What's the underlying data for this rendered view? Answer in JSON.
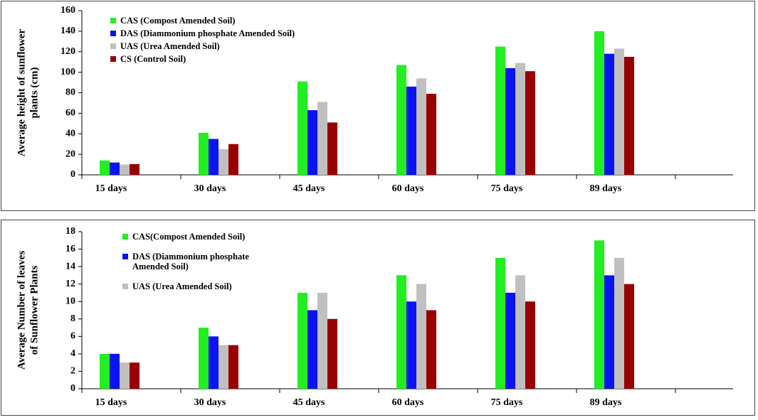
{
  "chart_data": [
    {
      "type": "bar",
      "ylabel": [
        "Average height of sunflower",
        "plants  (cm)"
      ],
      "categories": [
        "15 days",
        "30 days",
        "45 days",
        "60 days",
        "75 days",
        "89 days"
      ],
      "series": [
        {
          "name": "CAS (Compost Amended Soil)",
          "color": "#22ee22",
          "values": [
            14,
            41,
            91,
            107,
            125,
            140
          ]
        },
        {
          "name": "DAS (Diammonium phosphate  Amended Soil)",
          "color": "#0a14f0",
          "values": [
            12,
            35,
            63,
            86,
            104,
            118
          ]
        },
        {
          "name": "UAS (Urea Amended Soil)",
          "color": "#c0c0c0",
          "values": [
            10,
            25,
            71,
            94,
            109,
            123
          ]
        },
        {
          "name": "CS (Control Soil)",
          "color": "#990000",
          "values": [
            10.5,
            30,
            51,
            79,
            101,
            115
          ]
        }
      ],
      "ylim": [
        0,
        160
      ],
      "yticks": [
        0,
        20,
        40,
        60,
        80,
        100,
        120,
        140,
        160
      ],
      "grid": false
    },
    {
      "type": "bar",
      "ylabel": [
        "Average Number of leaves",
        "of Sunflower Plants"
      ],
      "categories": [
        "15 days",
        "30 days",
        "45 days",
        "60 days",
        "75 days",
        "89 days"
      ],
      "series": [
        {
          "name": "CAS(Compost Amended Soil)",
          "color": "#22ee22",
          "values": [
            4,
            7,
            11,
            13,
            15,
            17
          ]
        },
        {
          "name": "DAS (Diammonium phosphate Amended Soil)",
          "color": "#0a14f0",
          "values": [
            4,
            6,
            9,
            10,
            11,
            13
          ]
        },
        {
          "name": "UAS (Urea Amended Soil)",
          "color": "#c0c0c0",
          "values": [
            3,
            5,
            11,
            12,
            13,
            15
          ]
        },
        {
          "name": null,
          "color": "#990000",
          "values": [
            3,
            5,
            8,
            9,
            10,
            12
          ]
        }
      ],
      "ylim": [
        0,
        18
      ],
      "yticks": [
        0,
        2,
        4,
        6,
        8,
        10,
        12,
        14,
        16,
        18
      ],
      "grid": false
    }
  ]
}
